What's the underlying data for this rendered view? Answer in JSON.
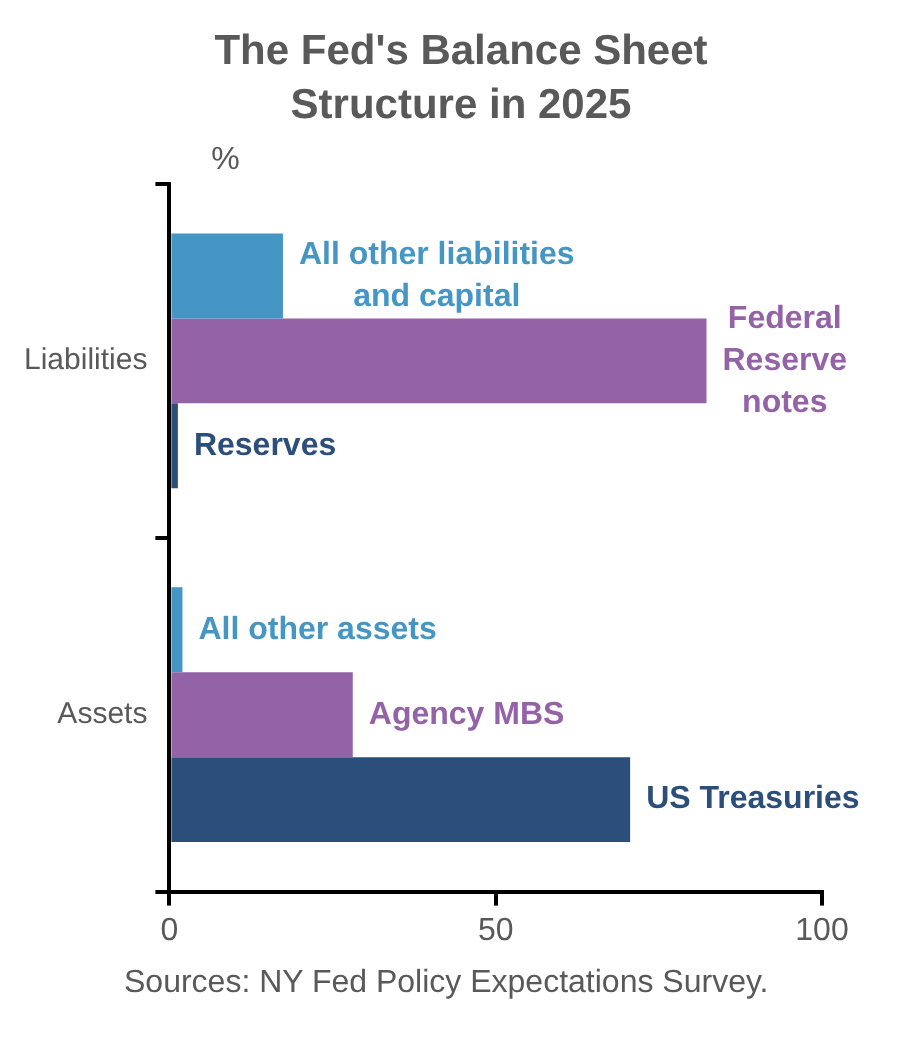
{
  "chart_data": {
    "type": "bar",
    "orientation": "horizontal",
    "title": "The Fed's Balance Sheet Structure in 2025",
    "xlabel": "%",
    "categories": [
      "Liabilities",
      "Assets"
    ],
    "series": [
      {
        "color": "#4596c4",
        "values": [
          17.4,
          2.0
        ]
      },
      {
        "color": "#9462a6",
        "values": [
          82.3,
          28.1
        ]
      },
      {
        "color": "#2b4e7b",
        "values": [
          1.3,
          70.6
        ]
      }
    ],
    "xlim": [
      0,
      100
    ],
    "xticks": [
      0,
      50,
      100
    ],
    "grid": false,
    "legend": false,
    "annotations": [
      "All other liabilities and capital",
      "Federal Reserve notes",
      "Reserves",
      "All other assets",
      "Agency MBS",
      "US Treasuries",
      "Sources: NY Fed Policy Expectations Survey."
    ]
  }
}
